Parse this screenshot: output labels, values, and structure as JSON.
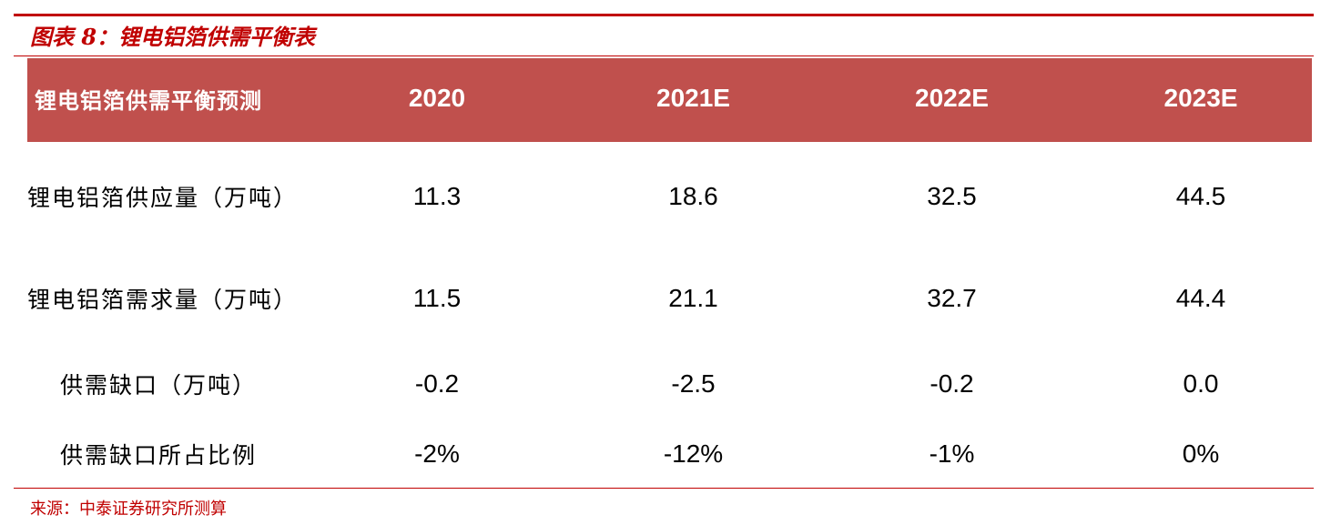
{
  "figure_title": "图表 8：锂电铝箔供需平衡表",
  "table": {
    "header_label": "锂电铝箔供需平衡预测",
    "years": [
      "2020",
      "2021E",
      "2022E",
      "2023E"
    ],
    "rows": [
      {
        "label": "锂电铝箔供应量（万吨）",
        "values": [
          "11.3",
          "18.6",
          "32.5",
          "44.5"
        ]
      },
      {
        "label": "锂电铝箔需求量（万吨）",
        "values": [
          "11.5",
          "21.1",
          "32.7",
          "44.4"
        ]
      },
      {
        "label": "供需缺口（万吨）",
        "values": [
          "-0.2",
          "-2.5",
          "-0.2",
          "0.0"
        ]
      },
      {
        "label": "供需缺口所占比例",
        "values": [
          "-2%",
          "-12%",
          "-1%",
          "0%"
        ]
      }
    ]
  },
  "source": "来源：中泰证券研究所测算",
  "colors": {
    "accent_red": "#c00000",
    "header_fill": "#c0504d"
  }
}
